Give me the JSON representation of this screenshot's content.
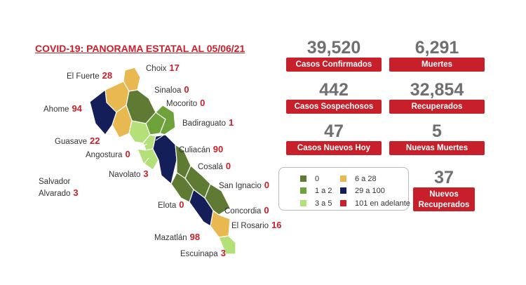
{
  "title": "COVID-19: PANORAMA ESTATAL AL 05/06/21",
  "municipios": [
    {
      "name": "El Fuerte",
      "value": 28
    },
    {
      "name": "Choix",
      "value": 17
    },
    {
      "name": "Sinaloa",
      "value": 0
    },
    {
      "name": "Ahome",
      "value": 94
    },
    {
      "name": "Mocorito",
      "value": 0
    },
    {
      "name": "Badiraguato",
      "value": 1
    },
    {
      "name": "Guasave",
      "value": 22
    },
    {
      "name": "Angostura",
      "value": 0
    },
    {
      "name": "Culiacán",
      "value": 90
    },
    {
      "name": "Cosalá",
      "value": 0
    },
    {
      "name": "Salvador Alvarado",
      "value": 3
    },
    {
      "name": "Navolato",
      "value": 3
    },
    {
      "name": "San Ignacio",
      "value": 0
    },
    {
      "name": "Elota",
      "value": 0
    },
    {
      "name": "Concordia",
      "value": 0
    },
    {
      "name": "El Rosario",
      "value": 16
    },
    {
      "name": "Mazatlán",
      "value": 98
    },
    {
      "name": "Escuinapa",
      "value": 3
    }
  ],
  "stats": [
    {
      "value": "39,520",
      "label": "Casos Confirmados"
    },
    {
      "value": "6,291",
      "label": "Muertes"
    },
    {
      "value": "442",
      "label": "Casos Sospechosos"
    },
    {
      "value": "32,854",
      "label": "Recuperados"
    },
    {
      "value": "47",
      "label": "Casos Nuevos Hoy"
    },
    {
      "value": "5",
      "label": "Nuevas Muertes"
    },
    {
      "value": "37",
      "label": "Nuevos Recuperados"
    }
  ],
  "legend": [
    {
      "label": "0",
      "color": "#5f7a33"
    },
    {
      "label": "1 a 2",
      "color": "#6da33a"
    },
    {
      "label": "3 a 5",
      "color": "#b4e07a"
    },
    {
      "label": "6 a 28",
      "color": "#e8b851"
    },
    {
      "label": "29 a 100",
      "color": "#141f5a"
    },
    {
      "label": "101 en adelante",
      "color": "#c8202b"
    }
  ]
}
